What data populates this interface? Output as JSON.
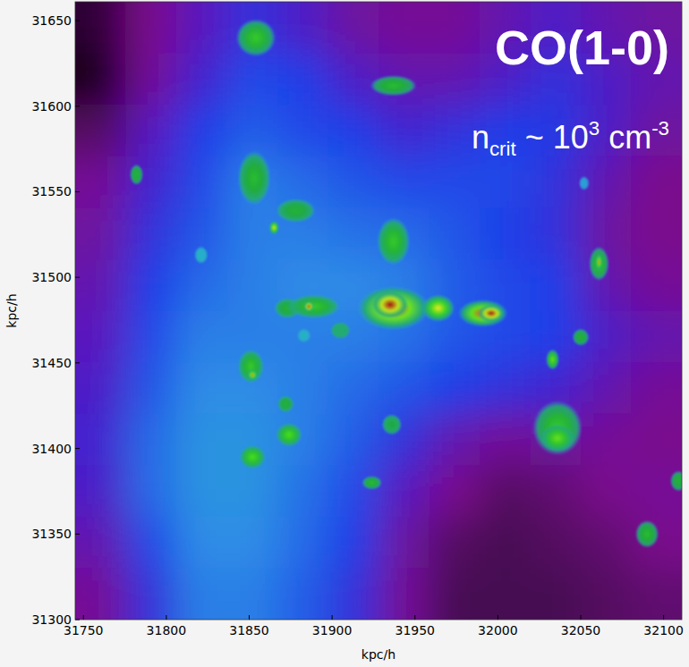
{
  "chart_data": {
    "type": "heatmap",
    "x_label": "kpc/h",
    "y_label": "kpc/h",
    "annotations": [
      [
        {
          "text": "CO(1-0)"
        }
      ],
      [
        {
          "text": "n",
          "sub": "crit"
        },
        {
          "text": " ~ 10",
          "sup": "3"
        },
        {
          "text": " cm",
          "sup": "-3"
        }
      ]
    ],
    "xlim": [
      31745,
      32111
    ],
    "ylim": [
      31300,
      31661
    ],
    "xticks": [
      31750,
      31800,
      31850,
      31900,
      31950,
      32000,
      32050,
      32100
    ],
    "yticks": [
      31300,
      31350,
      31400,
      31450,
      31500,
      31550,
      31600,
      31650
    ],
    "zlim": [
      0,
      1
    ],
    "cells": [
      [
        0.02,
        0.08,
        0.18,
        0.25,
        0.2,
        0.12,
        0.1,
        0.1,
        0.15,
        0.2,
        0.15,
        0.12
      ],
      [
        0.0,
        0.1,
        0.22,
        0.3,
        0.28,
        0.2,
        0.15,
        0.15,
        0.2,
        0.25,
        0.2,
        0.15
      ],
      [
        0.05,
        0.18,
        0.28,
        0.33,
        0.3,
        0.28,
        0.22,
        0.25,
        0.28,
        0.27,
        0.2,
        0.12
      ],
      [
        0.1,
        0.22,
        0.3,
        0.38,
        0.35,
        0.32,
        0.3,
        0.3,
        0.3,
        0.25,
        0.15,
        0.08
      ],
      [
        0.12,
        0.25,
        0.32,
        0.38,
        0.38,
        0.36,
        0.35,
        0.32,
        0.28,
        0.25,
        0.12,
        0.08
      ],
      [
        0.15,
        0.28,
        0.35,
        0.38,
        0.4,
        0.4,
        0.38,
        0.33,
        0.3,
        0.28,
        0.15,
        0.1
      ],
      [
        0.18,
        0.3,
        0.38,
        0.38,
        0.38,
        0.38,
        0.36,
        0.32,
        0.3,
        0.28,
        0.2,
        0.15
      ],
      [
        0.2,
        0.32,
        0.4,
        0.4,
        0.38,
        0.35,
        0.32,
        0.28,
        0.25,
        0.22,
        0.15,
        0.1
      ],
      [
        0.22,
        0.35,
        0.42,
        0.42,
        0.38,
        0.33,
        0.25,
        0.15,
        0.1,
        0.12,
        0.1,
        0.08
      ],
      [
        0.2,
        0.35,
        0.42,
        0.42,
        0.36,
        0.3,
        0.18,
        0.08,
        0.05,
        0.06,
        0.08,
        0.1
      ],
      [
        0.15,
        0.3,
        0.4,
        0.4,
        0.35,
        0.28,
        0.12,
        0.05,
        0.04,
        0.05,
        0.06,
        0.08
      ],
      [
        0.1,
        0.25,
        0.38,
        0.38,
        0.33,
        0.25,
        0.1,
        0.04,
        0.04,
        0.04,
        0.05,
        0.06
      ]
    ],
    "clumps": [
      {
        "x": 31854,
        "y": 31640,
        "rx": 12,
        "ry": 11,
        "value": 0.65
      },
      {
        "x": 31937,
        "y": 31612,
        "rx": 14,
        "ry": 6,
        "value": 0.62
      },
      {
        "x": 31782,
        "y": 31560,
        "rx": 4,
        "ry": 6,
        "value": 0.6
      },
      {
        "x": 31853,
        "y": 31558,
        "rx": 10,
        "ry": 16,
        "value": 0.62
      },
      {
        "x": 31878,
        "y": 31539,
        "rx": 12,
        "ry": 7,
        "value": 0.6
      },
      {
        "x": 31865,
        "y": 31529,
        "rx": 3,
        "ry": 4,
        "value": 0.8
      },
      {
        "x": 31821,
        "y": 31513,
        "rx": 4,
        "ry": 5,
        "value": 0.5
      },
      {
        "x": 31937,
        "y": 31521,
        "rx": 10,
        "ry": 14,
        "value": 0.65
      },
      {
        "x": 32052,
        "y": 31555,
        "rx": 3,
        "ry": 4,
        "value": 0.45
      },
      {
        "x": 31937,
        "y": 31482,
        "rx": 22,
        "ry": 13,
        "value": 0.9
      },
      {
        "x": 31935,
        "y": 31484,
        "rx": 11,
        "ry": 8,
        "value": 1.0
      },
      {
        "x": 31964,
        "y": 31482,
        "rx": 10,
        "ry": 8,
        "value": 0.8
      },
      {
        "x": 31991,
        "y": 31479,
        "rx": 15,
        "ry": 8,
        "value": 0.88
      },
      {
        "x": 31996,
        "y": 31479,
        "rx": 8,
        "ry": 5,
        "value": 1.0
      },
      {
        "x": 31873,
        "y": 31482,
        "rx": 8,
        "ry": 6,
        "value": 0.6
      },
      {
        "x": 31889,
        "y": 31483,
        "rx": 16,
        "ry": 7,
        "value": 0.65
      },
      {
        "x": 31886,
        "y": 31483,
        "rx": 3,
        "ry": 3,
        "value": 0.95
      },
      {
        "x": 31905,
        "y": 31469,
        "rx": 6,
        "ry": 5,
        "value": 0.55
      },
      {
        "x": 31883,
        "y": 31466,
        "rx": 4,
        "ry": 4,
        "value": 0.5
      },
      {
        "x": 31851,
        "y": 31448,
        "rx": 8,
        "ry": 10,
        "value": 0.65
      },
      {
        "x": 31852,
        "y": 31443,
        "rx": 3,
        "ry": 3,
        "value": 0.85
      },
      {
        "x": 31872,
        "y": 31426,
        "rx": 5,
        "ry": 5,
        "value": 0.6
      },
      {
        "x": 31874,
        "y": 31408,
        "rx": 8,
        "ry": 7,
        "value": 0.7
      },
      {
        "x": 31852,
        "y": 31395,
        "rx": 8,
        "ry": 7,
        "value": 0.7
      },
      {
        "x": 31936,
        "y": 31414,
        "rx": 6,
        "ry": 6,
        "value": 0.58
      },
      {
        "x": 31924,
        "y": 31380,
        "rx": 6,
        "ry": 4,
        "value": 0.62
      },
      {
        "x": 32033,
        "y": 31452,
        "rx": 4,
        "ry": 6,
        "value": 0.72
      },
      {
        "x": 32050,
        "y": 31465,
        "rx": 5,
        "ry": 5,
        "value": 0.6
      },
      {
        "x": 32061,
        "y": 31508,
        "rx": 6,
        "ry": 10,
        "value": 0.65
      },
      {
        "x": 32061,
        "y": 31509,
        "rx": 2,
        "ry": 5,
        "value": 0.85
      },
      {
        "x": 32036,
        "y": 31412,
        "rx": 15,
        "ry": 16,
        "value": 0.65
      },
      {
        "x": 32036,
        "y": 31406,
        "rx": 10,
        "ry": 8,
        "value": 0.72
      },
      {
        "x": 32090,
        "y": 31350,
        "rx": 7,
        "ry": 8,
        "value": 0.62
      },
      {
        "x": 32109,
        "y": 31381,
        "rx": 5,
        "ry": 6,
        "value": 0.6
      }
    ]
  }
}
